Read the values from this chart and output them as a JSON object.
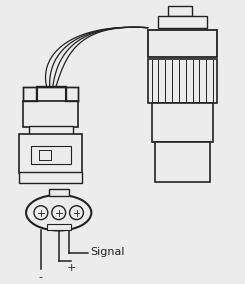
{
  "bg_color": "#ececec",
  "line_color": "#222222",
  "text_color": "#222222",
  "signal_label": "Signal",
  "minus_label": "-",
  "plus_label": "+",
  "figsize": [
    2.45,
    2.84
  ],
  "dpi": 100
}
